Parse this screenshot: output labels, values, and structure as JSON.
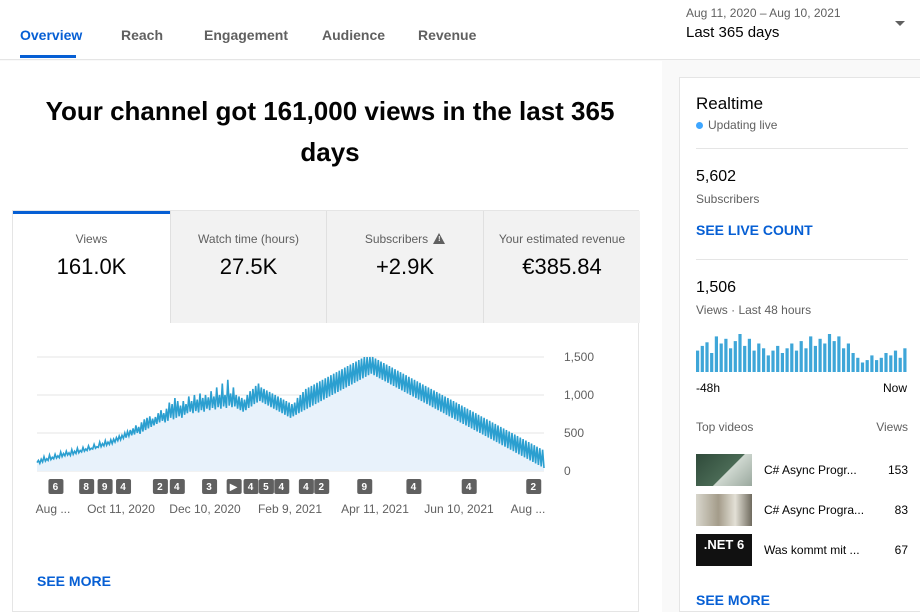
{
  "nav": {
    "tabs": [
      "Overview",
      "Reach",
      "Engagement",
      "Audience",
      "Revenue"
    ],
    "active_tab": "Overview",
    "date_range_dates": "Aug 11, 2020 – Aug 10, 2021",
    "date_range_label": "Last 365 days",
    "dropdown_icon": "caret-down-icon"
  },
  "headline": "Your channel got 161,000 views in the last 365 days",
  "metrics": [
    {
      "label": "Views",
      "value": "161.0K"
    },
    {
      "label": "Watch time (hours)",
      "value": "27.5K"
    },
    {
      "label": "Subscribers",
      "value": "+2.9K",
      "icon": "warning-icon"
    },
    {
      "label": "Your estimated revenue",
      "value": "€385.84"
    }
  ],
  "chart_data": {
    "type": "area",
    "series": [
      {
        "values": [
          110,
          140,
          100,
          155,
          120,
          190,
          130,
          160,
          140,
          210,
          150,
          180,
          160,
          220,
          170,
          200,
          175,
          250,
          190,
          230,
          200,
          260,
          210,
          240,
          205,
          280,
          220,
          260,
          230,
          300,
          240,
          270,
          250,
          310,
          260,
          290,
          270,
          330,
          280,
          300,
          290,
          350,
          300,
          320,
          310,
          380,
          320,
          360,
          330,
          400,
          340,
          380,
          350,
          410,
          360,
          420,
          380,
          440,
          400,
          460,
          410,
          470,
          430,
          500,
          440,
          520,
          460,
          540,
          470,
          560,
          480,
          600,
          500,
          580,
          490,
          640,
          520,
          680,
          540,
          700,
          560,
          720,
          580,
          690,
          600,
          710,
          620,
          760,
          640,
          800,
          660,
          760,
          640,
          820,
          660,
          900,
          700,
          880,
          680,
          960,
          700,
          920,
          720,
          860,
          700,
          920,
          740,
          880,
          760,
          980,
          780,
          920,
          760,
          1000,
          790,
          940,
          770,
          1020,
          800,
          960,
          780,
          1000,
          820,
          970,
          800,
          1050,
          830,
          980,
          810,
          1100,
          840,
          1000,
          820,
          1150,
          850,
          1000,
          830,
          1200,
          860,
          1020,
          840,
          1100,
          850,
          1000,
          820,
          980,
          800,
          960,
          780,
          940,
          800,
          1000,
          830,
          1050,
          850,
          1080,
          880,
          1120,
          900,
          1150,
          920,
          1100,
          900,
          1080,
          880,
          1060,
          860,
          1040,
          840,
          1020,
          820,
          1000,
          800,
          980,
          780,
          960,
          760,
          940,
          740,
          920,
          720,
          900,
          700,
          880,
          720,
          900,
          740,
          960,
          760,
          1000,
          780,
          1040,
          800,
          1080,
          820,
          1100,
          840,
          1120,
          860,
          1140,
          880,
          1160,
          900,
          1180,
          920,
          1200,
          940,
          1220,
          960,
          1240,
          980,
          1260,
          1000,
          1280,
          1020,
          1300,
          1040,
          1320,
          1060,
          1340,
          1080,
          1360,
          1100,
          1380,
          1120,
          1400,
          1140,
          1420,
          1160,
          1440,
          1180,
          1460,
          1200,
          1480,
          1220,
          1500,
          1240,
          1520,
          1260,
          1540,
          1280,
          1500,
          1260,
          1480,
          1240,
          1460,
          1220,
          1440,
          1200,
          1420,
          1180,
          1400,
          1160,
          1380,
          1140,
          1360,
          1120,
          1340,
          1100,
          1320,
          1080,
          1300,
          1060,
          1280,
          1040,
          1260,
          1020,
          1240,
          1000,
          1220,
          980,
          1200,
          960,
          1180,
          940,
          1160,
          920,
          1140,
          900,
          1120,
          880,
          1100,
          860,
          1080,
          840,
          1060,
          820,
          1040,
          800,
          1020,
          780,
          1000,
          760,
          980,
          740,
          960,
          720,
          940,
          700,
          920,
          680,
          900,
          660,
          880,
          640,
          860,
          620,
          840,
          600,
          820,
          580,
          800,
          560,
          780,
          540,
          760,
          520,
          740,
          500,
          720,
          480,
          700,
          460,
          680,
          440,
          660,
          420,
          640,
          400,
          620,
          380,
          600,
          360,
          580,
          340,
          560,
          320,
          540,
          300,
          520,
          280,
          500,
          260,
          480,
          240,
          460,
          220,
          440,
          200,
          420,
          180,
          400,
          160,
          380,
          140,
          360,
          120,
          340,
          100,
          320,
          80,
          300,
          60,
          280,
          40,
          260,
          20,
          240,
          0,
          220
        ]
      }
    ],
    "ylim": [
      0,
      1500
    ],
    "y_ticks": [
      "1,500",
      "1,000",
      "500",
      "0"
    ],
    "x_ticks": [
      "Aug ...",
      "Oct 11, 2020",
      "Dec 10, 2020",
      "Feb 9, 2021",
      "Apr 11, 2021",
      "Jun 10, 2021",
      "Aug ..."
    ],
    "markers": [
      {
        "label": "6",
        "at": 0.06
      },
      {
        "label": "8",
        "at": 0.16
      },
      {
        "label": "9",
        "at": 0.22
      },
      {
        "label": "4",
        "at": 0.28
      },
      {
        "label": "2",
        "at": 0.4
      },
      {
        "label": "4",
        "at": 0.455
      },
      {
        "label": "3",
        "at": 0.56
      },
      {
        "label": "▶",
        "at": 0.64
      },
      {
        "label": "4",
        "at": 0.695
      },
      {
        "label": "5",
        "at": 0.745
      },
      {
        "label": "4",
        "at": 0.795
      },
      {
        "label": "4",
        "at": 0.875
      },
      {
        "label": "2",
        "at": 0.925
      },
      {
        "label": "9",
        "at": 1.065
      },
      {
        "label": "4",
        "at": 1.225
      },
      {
        "label": "4",
        "at": 1.405
      },
      {
        "label": "2",
        "at": 1.615
      }
    ],
    "grid": true
  },
  "see_more": "SEE MORE",
  "realtime": {
    "title": "Realtime",
    "status": "Updating live",
    "subscribers_value": "5,602",
    "subscribers_label": "Subscribers",
    "live_count_link": "SEE LIVE COUNT",
    "views_value": "1,506",
    "views_label": "Views · Last 48 hours",
    "axis_start": "-48h",
    "axis_end": "Now",
    "bars": [
      18,
      22,
      25,
      16,
      30,
      24,
      28,
      20,
      26,
      32,
      22,
      28,
      18,
      24,
      20,
      14,
      18,
      22,
      16,
      20,
      24,
      18,
      26,
      20,
      30,
      22,
      28,
      24,
      32,
      26,
      30,
      20,
      24,
      16,
      12,
      8,
      10,
      14,
      10,
      12,
      16,
      14,
      18,
      12,
      20
    ],
    "top_videos_label": "Top videos",
    "views_column": "Views",
    "videos": [
      {
        "title": "C# Async Progr...",
        "views": "153"
      },
      {
        "title": "C# Async Progra...",
        "views": "83"
      },
      {
        "title": "Was kommt mit ...",
        "views": "67"
      }
    ],
    "thumb3_text": ".NET 6",
    "see_more": "SEE MORE"
  }
}
